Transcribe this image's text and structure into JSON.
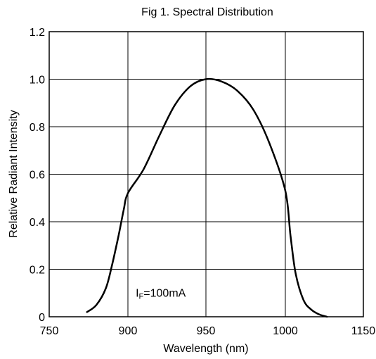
{
  "chart_data": {
    "type": "line",
    "title": "Fig 1. Spectral Distribution",
    "xlabel": "Wavelength (nm)",
    "ylabel": "Relative Radiant Intensity",
    "xlim": [
      750,
      1150
    ],
    "ylim": [
      0,
      1.2
    ],
    "grid": true,
    "x_ticks": [
      "750",
      "900",
      "950",
      "1000",
      "1150"
    ],
    "y_ticks": [
      "0",
      "0.2",
      "0.4",
      "0.6",
      "0.8",
      "1.0",
      "1.2"
    ],
    "annotation": {
      "main": "I",
      "sub": "F",
      "rest": "=100mA",
      "x": 905,
      "y": 0.1
    },
    "series": [
      {
        "x": [
          822,
          840,
          858,
          870,
          882,
          892,
          900,
          910,
          920,
          930,
          940,
          950,
          960,
          970,
          980,
          990,
          1000,
          1010,
          1020,
          1035,
          1050,
          1065,
          1080
        ],
        "y": [
          0.02,
          0.05,
          0.12,
          0.22,
          0.34,
          0.45,
          0.52,
          0.62,
          0.76,
          0.89,
          0.97,
          1.0,
          0.99,
          0.95,
          0.87,
          0.73,
          0.53,
          0.34,
          0.18,
          0.07,
          0.03,
          0.01,
          0.0
        ]
      }
    ]
  }
}
